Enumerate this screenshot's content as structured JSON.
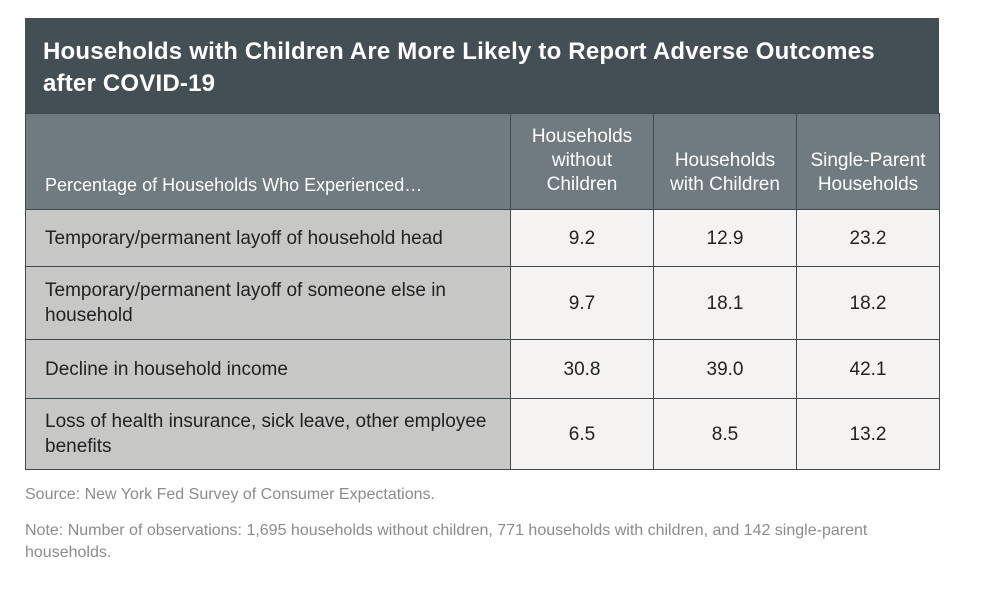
{
  "chart_data": {
    "type": "table",
    "title": "Households with Children Are More Likely to Report Adverse Outcomes after COVID-19",
    "row_header": "Percentage of Households Who Experienced…",
    "columns": [
      "Households without Children",
      "Households with Children",
      "Single-Parent Households"
    ],
    "rows": [
      {
        "label": "Temporary/permanent layoff of household head",
        "values": [
          "9.2",
          "12.9",
          "23.2"
        ]
      },
      {
        "label": "Temporary/permanent layoff of someone else in household",
        "values": [
          "9.7",
          "18.1",
          "18.2"
        ]
      },
      {
        "label": "Decline in household income",
        "values": [
          "30.8",
          "39.0",
          "42.1"
        ]
      },
      {
        "label": "Loss of health insurance, sick leave, other employee benefits",
        "values": [
          "6.5",
          "8.5",
          "13.2"
        ]
      }
    ],
    "source": "Source: New York Fed Survey of Consumer Expectations.",
    "note": "Note: Number of observations: 1,695 households without children, 771 households with children, and 142 single-parent households."
  },
  "colors": {
    "title_background": "#434e55",
    "header_background": "#6f7b81",
    "label_background": "#c7c7c6",
    "value_background": "#f4f3f1",
    "note_text": "#8b8b8b"
  }
}
